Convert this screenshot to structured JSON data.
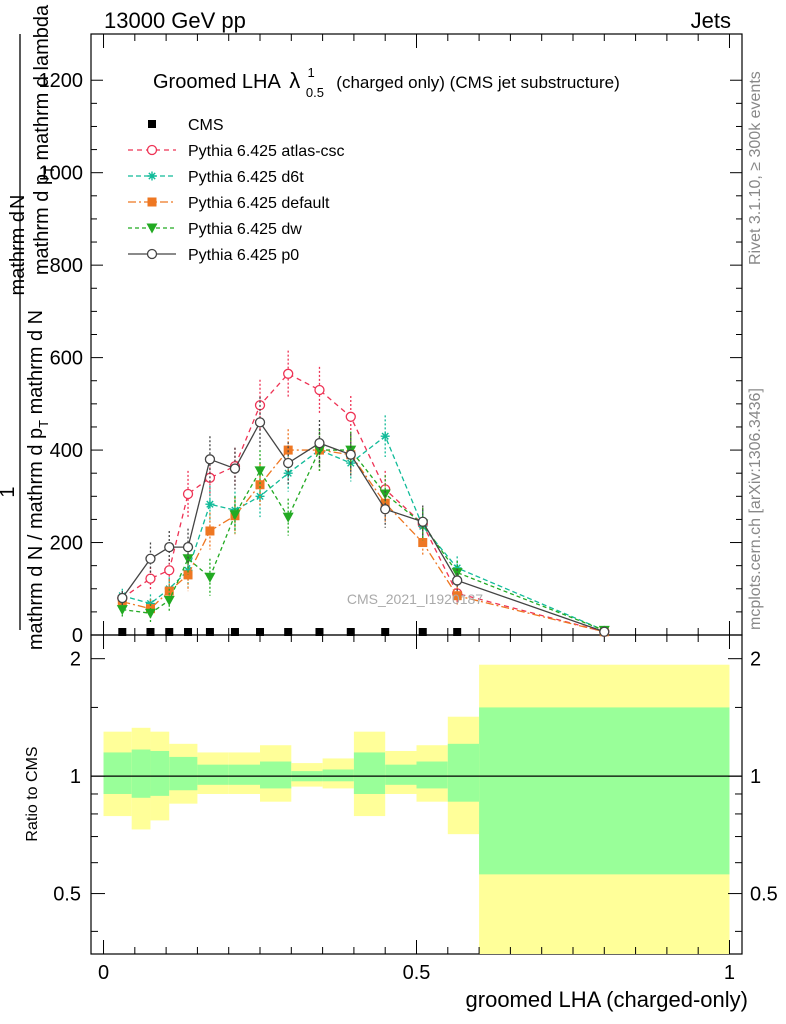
{
  "header": {
    "left": "13000 GeV pp",
    "right": "Jets"
  },
  "side_labels": {
    "rivet": "Rivet 3.1.10, ≥ 300k events",
    "mcplots": "mcplots.cern.ch [arXiv:1306.3436]"
  },
  "watermark": "CMS_2021_I1920187",
  "colors": {
    "CMS": "#000000",
    "atlas-csc": "#ee3355",
    "d6t": "#11bb99",
    "default": "#ee7722",
    "dw": "#22aa22",
    "p0": "#444444",
    "band_inner": "#99ff99",
    "band_outer": "#ffff99"
  },
  "chart_data": [
    {
      "type": "line",
      "title_main": "Groomed LHA",
      "title_symbol": "λ",
      "title_sup": "1",
      "title_sub": "0.5",
      "title_rest": "(charged only) (CMS jet substructure)",
      "ylabel_num": "1",
      "ylabel_num2": "mathrm d N / mathrm d p",
      "ylabel_sub": "T",
      "ylabel_tail": " mathrm d N",
      "ylabel_den": "mathrm d p",
      "ylabel_den_sub": "T",
      "ylabel_den_tail": " mathrm d lambda",
      "ylabel_num_top": "mathrm d",
      "ylabel_num_top2": "N",
      "xlim": [
        -0.02,
        1.02
      ],
      "ylim": [
        0,
        1300
      ],
      "yticks": [
        0,
        200,
        400,
        600,
        800,
        1000,
        1200
      ],
      "x": [
        0.03,
        0.075,
        0.105,
        0.135,
        0.17,
        0.21,
        0.25,
        0.295,
        0.345,
        0.395,
        0.45,
        0.51,
        0.565,
        0.8
      ],
      "series": [
        {
          "name": "CMS",
          "key": "CMS",
          "marker": "square",
          "dash": "",
          "values": [
            0,
            0,
            0,
            0,
            0,
            0,
            0,
            0,
            0,
            0,
            0,
            0,
            0,
            0
          ],
          "errors": [
            0,
            0,
            0,
            0,
            0,
            0,
            0,
            0,
            0,
            0,
            0,
            0,
            0,
            0
          ]
        },
        {
          "name": "Pythia 6.425 atlas-csc",
          "key": "atlas-csc",
          "marker": "circle-open",
          "dash": "5,4",
          "values": [
            80,
            122,
            140,
            305,
            340,
            365,
            497,
            565,
            530,
            472,
            315,
            240,
            90,
            7
          ],
          "errors": [
            15,
            25,
            25,
            50,
            40,
            40,
            55,
            50,
            50,
            45,
            40,
            35,
            20,
            5
          ]
        },
        {
          "name": "Pythia 6.425 d6t",
          "key": "d6t",
          "marker": "star",
          "dash": "5,3",
          "values": [
            85,
            68,
            100,
            140,
            283,
            270,
            300,
            350,
            400,
            372,
            430,
            235,
            145,
            10
          ],
          "errors": [
            15,
            20,
            25,
            35,
            40,
            40,
            45,
            40,
            45,
            40,
            45,
            35,
            25,
            5
          ]
        },
        {
          "name": "Pythia 6.425 default",
          "key": "default",
          "marker": "square-filled",
          "dash": "8,3,2,3",
          "values": [
            72,
            57,
            95,
            130,
            225,
            258,
            325,
            400,
            400,
            390,
            285,
            200,
            85,
            7
          ],
          "errors": [
            15,
            20,
            25,
            35,
            40,
            40,
            45,
            45,
            45,
            40,
            40,
            30,
            20,
            5
          ]
        },
        {
          "name": "Pythia 6.425 dw",
          "key": "dw",
          "marker": "triangle-down",
          "dash": "4,3",
          "values": [
            55,
            47,
            75,
            165,
            125,
            260,
            355,
            255,
            400,
            400,
            305,
            240,
            135,
            10
          ],
          "errors": [
            15,
            20,
            25,
            35,
            40,
            40,
            45,
            40,
            45,
            40,
            40,
            35,
            25,
            5
          ]
        },
        {
          "name": "Pythia 6.425 p0",
          "key": "p0",
          "marker": "circle-open",
          "dash": "",
          "values": [
            80,
            165,
            190,
            190,
            380,
            360,
            460,
            372,
            415,
            390,
            272,
            245,
            118,
            7
          ],
          "errors": [
            15,
            35,
            35,
            40,
            50,
            45,
            55,
            45,
            50,
            45,
            40,
            35,
            25,
            5
          ]
        }
      ]
    },
    {
      "type": "area",
      "ylabel": "Ratio to CMS",
      "xlabel": "groomed LHA (charged-only)",
      "xlim": [
        -0.02,
        1.02
      ],
      "ylim": [
        0.35,
        2.3
      ],
      "yticks": [
        0.5,
        1,
        2
      ],
      "ytick_labels": [
        "0.5",
        "1",
        "2"
      ],
      "xticks": [
        0,
        0.5,
        1
      ],
      "xtick_labels": [
        "0",
        "0.5",
        "1"
      ],
      "reference": 1,
      "bins": [
        {
          "lo": 0.0,
          "hi": 0.045,
          "inner": [
            0.9,
            1.15
          ],
          "outer": [
            0.79,
            1.3
          ]
        },
        {
          "lo": 0.045,
          "hi": 0.075,
          "inner": [
            0.88,
            1.17
          ],
          "outer": [
            0.73,
            1.33
          ]
        },
        {
          "lo": 0.075,
          "hi": 0.105,
          "inner": [
            0.89,
            1.16
          ],
          "outer": [
            0.77,
            1.3
          ]
        },
        {
          "lo": 0.105,
          "hi": 0.15,
          "inner": [
            0.92,
            1.12
          ],
          "outer": [
            0.85,
            1.21
          ]
        },
        {
          "lo": 0.15,
          "hi": 0.2,
          "inner": [
            0.95,
            1.07
          ],
          "outer": [
            0.9,
            1.15
          ]
        },
        {
          "lo": 0.2,
          "hi": 0.25,
          "inner": [
            0.95,
            1.07
          ],
          "outer": [
            0.9,
            1.15
          ]
        },
        {
          "lo": 0.25,
          "hi": 0.3,
          "inner": [
            0.93,
            1.09
          ],
          "outer": [
            0.86,
            1.2
          ]
        },
        {
          "lo": 0.3,
          "hi": 0.35,
          "inner": [
            0.97,
            1.03
          ],
          "outer": [
            0.94,
            1.08
          ]
        },
        {
          "lo": 0.35,
          "hi": 0.4,
          "inner": [
            0.97,
            1.04
          ],
          "outer": [
            0.93,
            1.11
          ]
        },
        {
          "lo": 0.4,
          "hi": 0.45,
          "inner": [
            0.9,
            1.15
          ],
          "outer": [
            0.79,
            1.3
          ]
        },
        {
          "lo": 0.45,
          "hi": 0.5,
          "inner": [
            0.95,
            1.07
          ],
          "outer": [
            0.9,
            1.16
          ]
        },
        {
          "lo": 0.5,
          "hi": 0.55,
          "inner": [
            0.93,
            1.09
          ],
          "outer": [
            0.86,
            1.2
          ]
        },
        {
          "lo": 0.55,
          "hi": 0.6,
          "inner": [
            0.86,
            1.21
          ],
          "outer": [
            0.71,
            1.42
          ]
        },
        {
          "lo": 0.6,
          "hi": 1.0,
          "inner": [
            0.56,
            1.5
          ],
          "outer": [
            0.35,
            1.93
          ]
        }
      ]
    }
  ]
}
